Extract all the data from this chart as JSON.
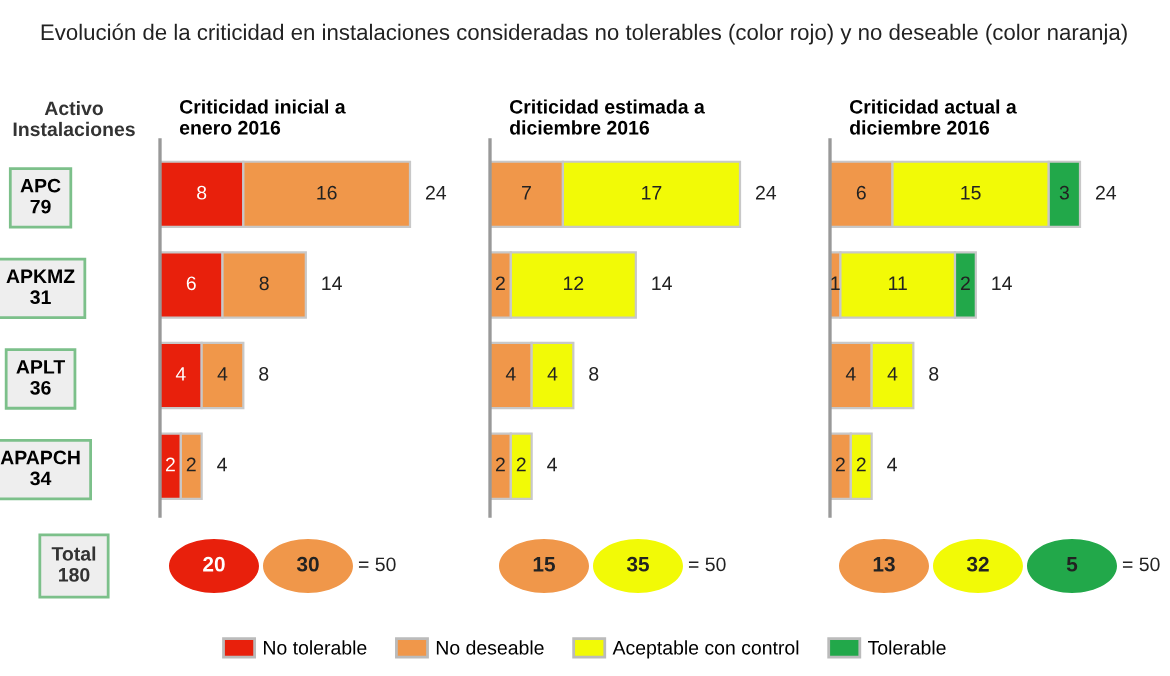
{
  "chart_data": [
    {
      "type": "bar",
      "orientation": "horizontal",
      "stacked": true,
      "title": "Criticidad inicial a\nenero 2016",
      "ylabel": "Activo\nInstalaciones",
      "categories": [
        "APC\n79",
        "APKMZ\n31",
        "APLT\n36",
        "APAPCH\n34"
      ],
      "tick_labels": "y",
      "data_labels": true,
      "totals": [
        "24",
        "14",
        "8",
        "4"
      ],
      "legend": "bottom",
      "series": [
        {
          "name": "No tolerable",
          "color": "#e8200c",
          "values": [
            8,
            6,
            4,
            2
          ]
        },
        {
          "name": "No deseable",
          "color": "#f0974a",
          "values": [
            16,
            8,
            4,
            2
          ]
        }
      ],
      "annotations": [
        "Total\n180",
        "20",
        "30",
        "= 50"
      ]
    },
    {
      "type": "bar",
      "orientation": "horizontal",
      "stacked": true,
      "title": "Criticidad estimada a\ndiciembre 2016",
      "categories": [
        null,
        null,
        null,
        null
      ],
      "tick_labels": false,
      "data_labels": true,
      "totals": [
        "24",
        "14",
        "8",
        "4"
      ],
      "legend": "bottom",
      "series": [
        {
          "name": "No deseable",
          "color": "#f0974a",
          "values": [
            7,
            2,
            4,
            2
          ]
        },
        {
          "name": "Aceptable con control",
          "color": "#f2fa06",
          "values": [
            17,
            12,
            4,
            2
          ]
        }
      ],
      "annotations": [
        "15",
        "35",
        "= 50"
      ]
    },
    {
      "type": "bar",
      "orientation": "horizontal",
      "stacked": true,
      "title": "Criticidad actual a\ndiciembre 2016",
      "categories": [
        null,
        null,
        null,
        null
      ],
      "tick_labels": false,
      "data_labels": true,
      "totals": [
        "24",
        "14",
        "8",
        "4"
      ],
      "legend": "bottom",
      "series": [
        {
          "name": "No deseable",
          "color": "#f0974a",
          "values": [
            6,
            1,
            4,
            2
          ]
        },
        {
          "name": "Aceptable con control",
          "color": "#f2fa06",
          "values": [
            15,
            11,
            4,
            2
          ]
        },
        {
          "name": "Tolerable",
          "color": "#22a84a",
          "values": [
            3,
            2,
            null,
            null
          ]
        }
      ],
      "annotations": [
        "13",
        "32",
        "5",
        "= 50"
      ]
    },
    {
      "type": "other",
      "title": "Evolución de la criticidad en instalaciones consideradas no tolerables (color rojo) y no deseable (color naranja)"
    }
  ]
}
